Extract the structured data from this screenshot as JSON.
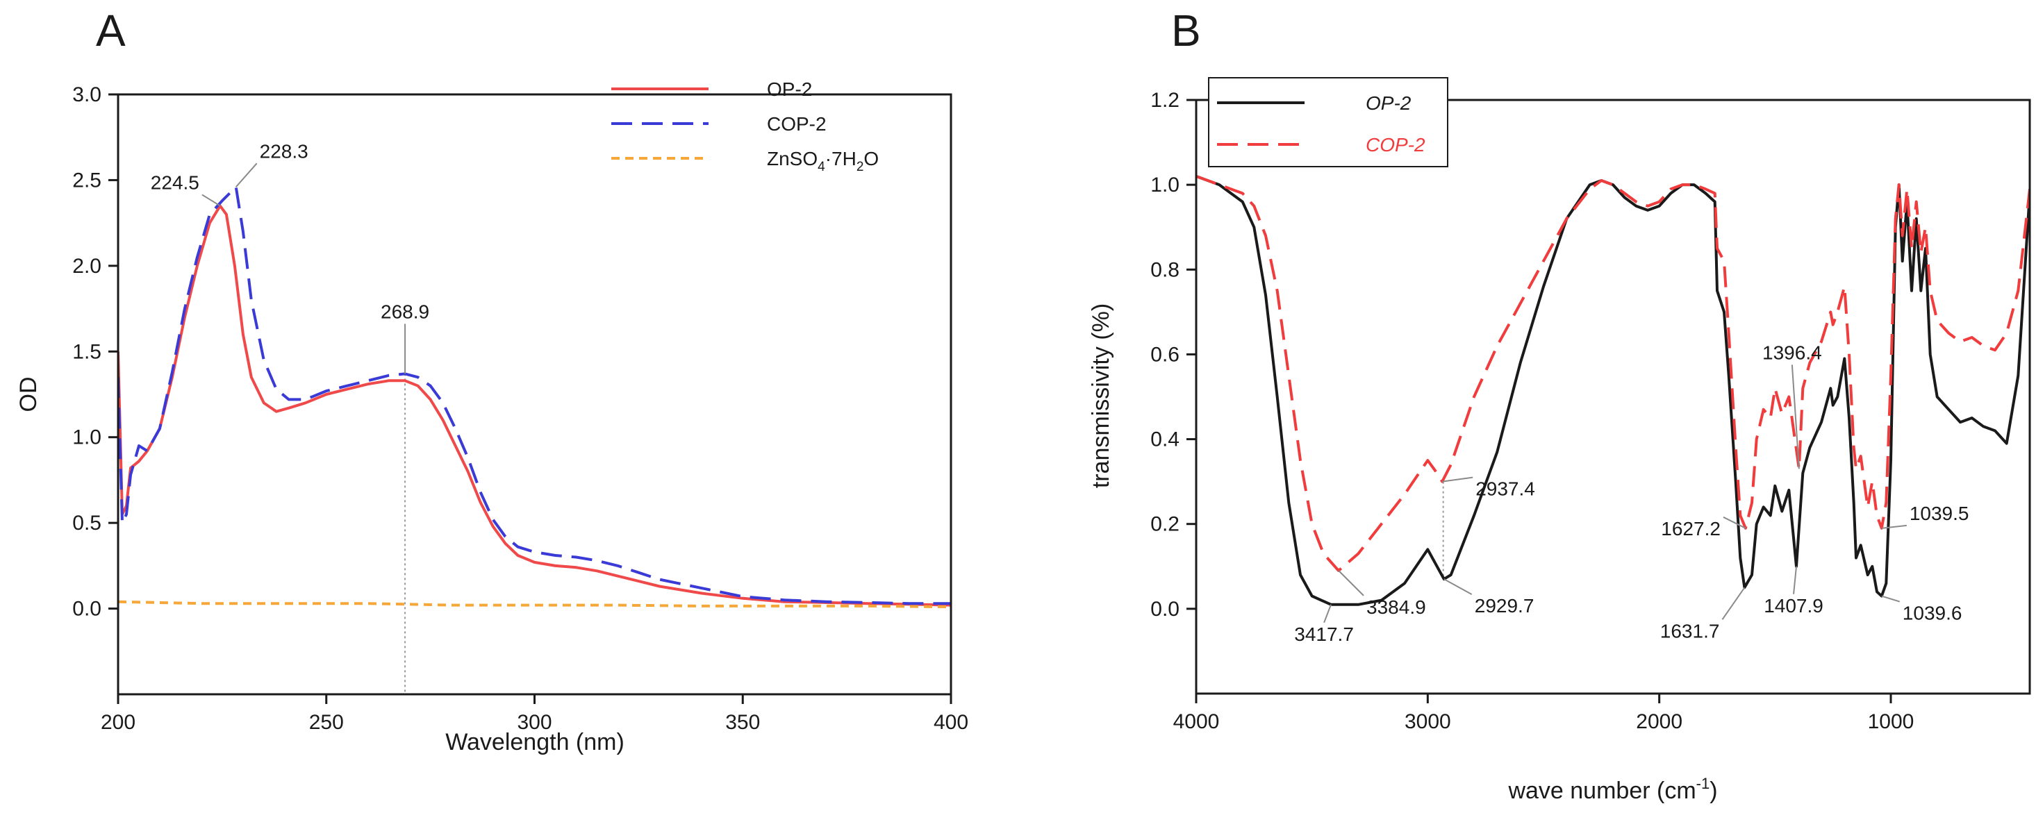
{
  "chart_data": [
    {
      "type": "line",
      "panel": "A",
      "xlabel": "Wavelength (nm)",
      "ylabel": "OD",
      "xlim": [
        200,
        400
      ],
      "ylim": [
        -0.5,
        3.0
      ],
      "xticks": [
        200,
        250,
        300,
        350,
        400
      ],
      "yticks": [
        0.0,
        0.5,
        1.0,
        1.5,
        2.0,
        2.5,
        3.0
      ],
      "xtick_labels": [
        "200",
        "250",
        "300",
        "350",
        "400"
      ],
      "ytick_labels": [
        "0.0",
        "0.5",
        "1.0",
        "1.5",
        "2.0",
        "2.5",
        "3.0"
      ],
      "legend": {
        "position": "top-right",
        "entries": [
          "OP-2",
          "COP-2"
        ],
        "entry3": {
          "base": "ZnSO",
          "sub1": "4",
          "mid": "·7H",
          "sub2": "2",
          "end": "O"
        }
      },
      "series": [
        {
          "name": "OP-2",
          "color": "#f0494a",
          "dash": "solid",
          "x": [
            200,
            201,
            202,
            203,
            205,
            207,
            210,
            213,
            216,
            219,
            222,
            224.5,
            226,
            228,
            230,
            232,
            235,
            238,
            241,
            245,
            250,
            255,
            260,
            265,
            268.9,
            272,
            275,
            278,
            281,
            284,
            287,
            290,
            293,
            296,
            300,
            305,
            310,
            315,
            320,
            325,
            330,
            340,
            350,
            360,
            370,
            380,
            390,
            400
          ],
          "y": [
            1.5,
            0.55,
            0.6,
            0.82,
            0.86,
            0.92,
            1.05,
            1.35,
            1.7,
            2.0,
            2.25,
            2.35,
            2.3,
            2.0,
            1.6,
            1.35,
            1.2,
            1.15,
            1.17,
            1.2,
            1.25,
            1.28,
            1.31,
            1.33,
            1.33,
            1.3,
            1.22,
            1.1,
            0.95,
            0.8,
            0.62,
            0.48,
            0.38,
            0.31,
            0.27,
            0.25,
            0.24,
            0.22,
            0.19,
            0.16,
            0.13,
            0.09,
            0.06,
            0.04,
            0.035,
            0.03,
            0.025,
            0.02
          ]
        },
        {
          "name": "COP-2",
          "color": "#3a3ad6",
          "dash": "long",
          "x": [
            200,
            201,
            202,
            203,
            205,
            207,
            210,
            213,
            216,
            219,
            222,
            225,
            228.3,
            230,
            232,
            235,
            238,
            241,
            245,
            250,
            255,
            260,
            265,
            268.9,
            272,
            275,
            278,
            281,
            284,
            287,
            290,
            293,
            296,
            300,
            305,
            310,
            315,
            320,
            325,
            330,
            340,
            350,
            360,
            370,
            380,
            390,
            400
          ],
          "y": [
            1.35,
            0.5,
            0.55,
            0.78,
            0.95,
            0.92,
            1.05,
            1.38,
            1.75,
            2.05,
            2.3,
            2.38,
            2.46,
            2.2,
            1.8,
            1.45,
            1.28,
            1.22,
            1.22,
            1.27,
            1.3,
            1.33,
            1.36,
            1.37,
            1.35,
            1.3,
            1.2,
            1.05,
            0.88,
            0.68,
            0.52,
            0.42,
            0.36,
            0.33,
            0.31,
            0.3,
            0.28,
            0.25,
            0.21,
            0.17,
            0.12,
            0.07,
            0.05,
            0.04,
            0.035,
            0.03,
            0.03
          ]
        },
        {
          "name": "ZnSO4·7H2O",
          "color": "#f5a73a",
          "dash": "short",
          "x": [
            200,
            220,
            240,
            260,
            280,
            300,
            320,
            340,
            360,
            380,
            400
          ],
          "y": [
            0.04,
            0.03,
            0.03,
            0.03,
            0.02,
            0.02,
            0.02,
            0.015,
            0.015,
            0.015,
            0.01
          ]
        }
      ],
      "annotations": [
        {
          "text": "224.5",
          "x": 224.5,
          "y": 2.35
        },
        {
          "text": "228.3",
          "x": 228.3,
          "y": 2.46
        },
        {
          "text": "268.9",
          "x": 268.9,
          "y": 1.37
        }
      ],
      "reference_line": {
        "x": 268.9
      }
    },
    {
      "type": "line",
      "panel": "B",
      "xlabel": {
        "base": "wave number (cm",
        "sup": "-1",
        "end": ")"
      },
      "ylabel": "transmissivity (%)",
      "xlim": [
        4000,
        400
      ],
      "ylim": [
        -0.2,
        1.2
      ],
      "xticks": [
        4000,
        3000,
        2000,
        1000
      ],
      "yticks": [
        0.0,
        0.2,
        0.4,
        0.6,
        0.8,
        1.0,
        1.2
      ],
      "xtick_labels": [
        "4000",
        "3000",
        "2000",
        "1000"
      ],
      "ytick_labels": [
        "0.0",
        "0.2",
        "0.4",
        "0.6",
        "0.8",
        "1.0",
        "1.2"
      ],
      "legend": {
        "position": "top-left",
        "entries": [
          "OP-2",
          "COP-2"
        ]
      },
      "series": [
        {
          "name": "OP-2",
          "color": "#1a1a1a",
          "dash": "solid",
          "x": [
            4000,
            3900,
            3800,
            3750,
            3700,
            3650,
            3600,
            3550,
            3500,
            3417.7,
            3300,
            3200,
            3100,
            3050,
            3000,
            2960,
            2929.7,
            2900,
            2800,
            2700,
            2600,
            2500,
            2400,
            2300,
            2250,
            2200,
            2150,
            2100,
            2050,
            2000,
            1950,
            1900,
            1850,
            1800,
            1760,
            1750,
            1720,
            1700,
            1670,
            1650,
            1631.7,
            1600,
            1580,
            1550,
            1520,
            1500,
            1470,
            1440,
            1407.9,
            1380,
            1350,
            1300,
            1260,
            1250,
            1230,
            1200,
            1180,
            1160,
            1150,
            1130,
            1100,
            1080,
            1060,
            1039.6,
            1020,
            1000,
            980,
            965,
            950,
            930,
            910,
            890,
            870,
            850,
            830,
            800,
            750,
            700,
            650,
            600,
            550,
            500,
            450,
            400
          ],
          "y": [
            1.02,
            1.0,
            0.96,
            0.9,
            0.74,
            0.5,
            0.25,
            0.08,
            0.03,
            0.01,
            0.01,
            0.02,
            0.06,
            0.1,
            0.14,
            0.1,
            0.07,
            0.08,
            0.22,
            0.37,
            0.58,
            0.76,
            0.92,
            1.0,
            1.01,
            1.0,
            0.97,
            0.95,
            0.94,
            0.95,
            0.98,
            1.0,
            1.0,
            0.98,
            0.96,
            0.75,
            0.7,
            0.55,
            0.3,
            0.12,
            0.05,
            0.08,
            0.2,
            0.24,
            0.22,
            0.29,
            0.23,
            0.28,
            0.1,
            0.32,
            0.38,
            0.44,
            0.52,
            0.48,
            0.5,
            0.59,
            0.45,
            0.25,
            0.12,
            0.15,
            0.08,
            0.1,
            0.04,
            0.03,
            0.06,
            0.35,
            0.9,
            1.0,
            0.82,
            0.96,
            0.75,
            0.92,
            0.75,
            0.85,
            0.6,
            0.5,
            0.47,
            0.44,
            0.45,
            0.43,
            0.42,
            0.39,
            0.55,
            0.98
          ]
        },
        {
          "name": "COP-2",
          "color": "#f03c3c",
          "dash": "long",
          "x": [
            4000,
            3900,
            3800,
            3750,
            3700,
            3650,
            3600,
            3550,
            3500,
            3450,
            3384.9,
            3300,
            3200,
            3100,
            3000,
            2960,
            2937.4,
            2900,
            2800,
            2700,
            2600,
            2500,
            2400,
            2300,
            2250,
            2200,
            2150,
            2100,
            2050,
            2000,
            1950,
            1900,
            1850,
            1800,
            1760,
            1750,
            1720,
            1700,
            1670,
            1650,
            1627.2,
            1600,
            1580,
            1550,
            1520,
            1500,
            1470,
            1440,
            1396.4,
            1380,
            1350,
            1300,
            1260,
            1250,
            1230,
            1200,
            1180,
            1160,
            1150,
            1130,
            1100,
            1080,
            1060,
            1039.5,
            1020,
            1000,
            980,
            965,
            950,
            930,
            910,
            890,
            870,
            850,
            830,
            800,
            750,
            700,
            650,
            600,
            550,
            500,
            450,
            400
          ],
          "y": [
            1.02,
            1.0,
            0.98,
            0.95,
            0.88,
            0.75,
            0.55,
            0.35,
            0.2,
            0.13,
            0.09,
            0.13,
            0.2,
            0.27,
            0.35,
            0.32,
            0.3,
            0.34,
            0.5,
            0.62,
            0.72,
            0.82,
            0.92,
            0.99,
            1.01,
            1.0,
            0.98,
            0.96,
            0.95,
            0.96,
            0.99,
            1.0,
            1.0,
            0.99,
            0.98,
            0.85,
            0.82,
            0.65,
            0.38,
            0.22,
            0.19,
            0.25,
            0.4,
            0.47,
            0.45,
            0.52,
            0.46,
            0.5,
            0.33,
            0.52,
            0.58,
            0.63,
            0.7,
            0.67,
            0.7,
            0.76,
            0.6,
            0.38,
            0.33,
            0.36,
            0.24,
            0.3,
            0.22,
            0.19,
            0.25,
            0.55,
            0.92,
            1.0,
            0.88,
            0.99,
            0.85,
            0.96,
            0.84,
            0.9,
            0.75,
            0.68,
            0.65,
            0.63,
            0.64,
            0.62,
            0.61,
            0.65,
            0.75,
            0.99
          ]
        }
      ],
      "annotations": [
        {
          "text": "3417.7",
          "x": 3417.7,
          "y": 0.01
        },
        {
          "text": "3384.9",
          "x": 3384.9,
          "y": 0.09
        },
        {
          "text": "2929.7",
          "x": 2929.7,
          "y": 0.07
        },
        {
          "text": "2937.4",
          "x": 2937.4,
          "y": 0.3
        },
        {
          "text": "1627.2",
          "x": 1627.2,
          "y": 0.19
        },
        {
          "text": "1631.7",
          "x": 1631.7,
          "y": 0.05
        },
        {
          "text": "1396.4",
          "x": 1396.4,
          "y": 0.33
        },
        {
          "text": "1407.9",
          "x": 1407.9,
          "y": 0.1
        },
        {
          "text": "1039.5",
          "x": 1039.5,
          "y": 0.19
        },
        {
          "text": "1039.6",
          "x": 1039.6,
          "y": 0.03
        }
      ],
      "reference_line": {
        "x": 2933
      }
    }
  ]
}
